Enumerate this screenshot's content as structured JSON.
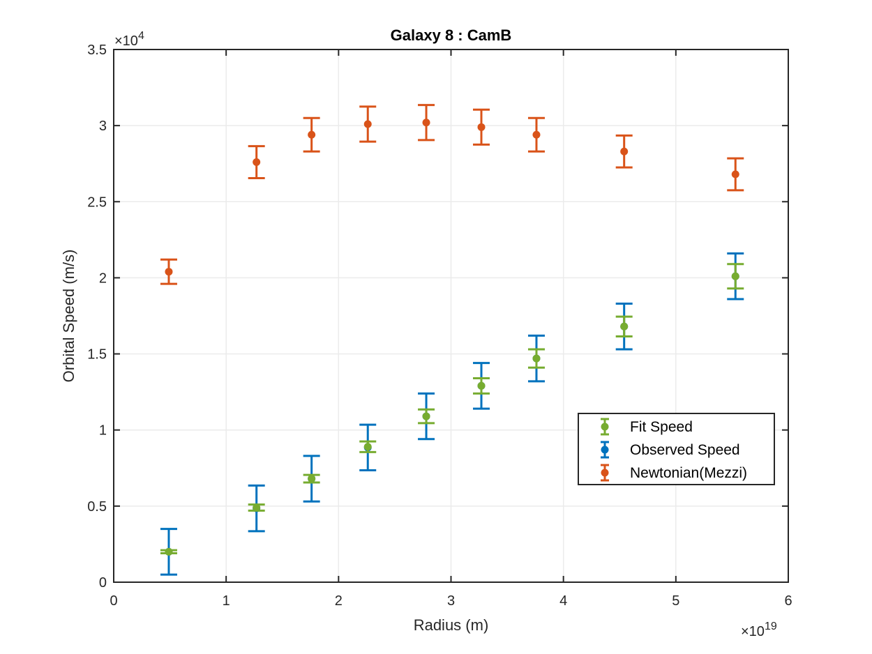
{
  "chart_data": {
    "type": "scatter",
    "title": "Galaxy 8 : CamB",
    "xlabel": "Radius (m)",
    "ylabel": "Orbital Speed (m/s)",
    "x_multiplier": "×10",
    "x_exponent": "19",
    "y_multiplier": "×10",
    "y_exponent": "4",
    "xlim": [
      0,
      6
    ],
    "ylim": [
      0,
      3.5
    ],
    "x_ticks": [
      0,
      1,
      2,
      3,
      4,
      5,
      6
    ],
    "y_ticks": [
      0,
      0.5,
      1,
      1.5,
      2,
      2.5,
      3,
      3.5
    ],
    "x_tick_labels": [
      "0",
      "1",
      "2",
      "3",
      "4",
      "5",
      "6"
    ],
    "y_tick_labels": [
      "0",
      "0.5",
      "1",
      "1.5",
      "2",
      "2.5",
      "3",
      "3.5"
    ],
    "grid": true,
    "legend_position": "right",
    "x": [
      0.49,
      1.27,
      1.76,
      2.26,
      2.78,
      3.27,
      3.76,
      4.54,
      5.53
    ],
    "series": [
      {
        "name": "Fit Speed",
        "color": "#77AC30",
        "y": [
          0.2,
          0.49,
          0.68,
          0.89,
          1.09,
          1.29,
          1.47,
          1.68,
          2.01
        ],
        "err": [
          0.01,
          0.02,
          0.025,
          0.035,
          0.045,
          0.05,
          0.06,
          0.065,
          0.08
        ]
      },
      {
        "name": "Observed Speed",
        "color": "#0072BD",
        "y": [
          0.2,
          0.485,
          0.68,
          0.885,
          1.09,
          1.29,
          1.47,
          1.68,
          2.01
        ],
        "err": [
          0.15,
          0.15,
          0.15,
          0.15,
          0.15,
          0.15,
          0.15,
          0.15,
          0.15
        ]
      },
      {
        "name": "Newtonian(Mezzi)",
        "color": "#D95319",
        "y": [
          2.04,
          2.76,
          2.94,
          3.01,
          3.02,
          2.99,
          2.94,
          2.83,
          2.68
        ],
        "err": [
          0.08,
          0.105,
          0.11,
          0.115,
          0.115,
          0.115,
          0.11,
          0.105,
          0.105
        ]
      }
    ]
  }
}
